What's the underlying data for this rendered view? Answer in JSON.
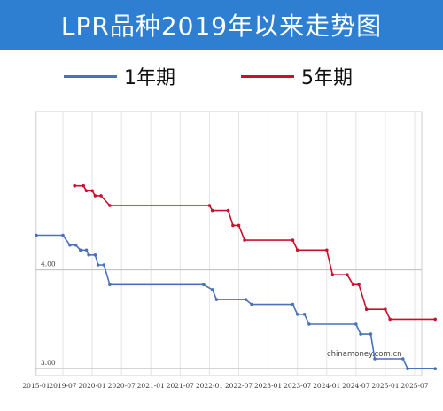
{
  "title": "LPR品种2019年以来走势图",
  "legend": [
    {
      "label": "1年期",
      "color": "#4a72b8"
    },
    {
      "label": "5年期",
      "color": "#c8102e"
    }
  ],
  "watermark": "chinamoney.com.cn",
  "chart_data": {
    "type": "line",
    "title": "LPR品种2019年以来走势图",
    "xlabel": "",
    "ylabel": "",
    "ylim": [
      2.93,
      5.6
    ],
    "y_ticks": [
      {
        "value": 4.0,
        "label": "4.00"
      },
      {
        "value": 3.0,
        "label": "3.00"
      }
    ],
    "x_ticks": [
      {
        "t": 2015.0,
        "label": "2015-01"
      },
      {
        "t": 2019.5,
        "label": "2019-07"
      },
      {
        "t": 2020.0,
        "label": "2020-01"
      },
      {
        "t": 2020.5,
        "label": "2020-07"
      },
      {
        "t": 2021.0,
        "label": "2021-01"
      },
      {
        "t": 2021.5,
        "label": "2021-07"
      },
      {
        "t": 2022.0,
        "label": "2022-01"
      },
      {
        "t": 2022.5,
        "label": "2022-07"
      },
      {
        "t": 2023.0,
        "label": "2023-01"
      },
      {
        "t": 2023.5,
        "label": "2023-07"
      },
      {
        "t": 2024.0,
        "label": "2024-01"
      },
      {
        "t": 2024.5,
        "label": "2024-07"
      },
      {
        "t": 2025.0,
        "label": "2025-01"
      },
      {
        "t": 2025.5,
        "label": "2025-07"
      }
    ],
    "grid": true,
    "series": [
      {
        "name": "1年期",
        "color": "#4a72b8",
        "points": [
          [
            2015.0,
            4.35
          ],
          [
            2019.5,
            4.35
          ],
          [
            2019.62,
            4.25
          ],
          [
            2019.72,
            4.25
          ],
          [
            2019.8,
            4.2
          ],
          [
            2019.9,
            4.2
          ],
          [
            2019.94,
            4.15
          ],
          [
            2020.05,
            4.15
          ],
          [
            2020.1,
            4.05
          ],
          [
            2020.2,
            4.05
          ],
          [
            2020.3,
            3.85
          ],
          [
            2021.9,
            3.85
          ],
          [
            2022.05,
            3.8
          ],
          [
            2022.12,
            3.7
          ],
          [
            2022.62,
            3.7
          ],
          [
            2022.72,
            3.65
          ],
          [
            2023.42,
            3.65
          ],
          [
            2023.5,
            3.55
          ],
          [
            2023.62,
            3.55
          ],
          [
            2023.7,
            3.45
          ],
          [
            2024.5,
            3.45
          ],
          [
            2024.58,
            3.35
          ],
          [
            2024.75,
            3.35
          ],
          [
            2024.82,
            3.1
          ],
          [
            2025.3,
            3.1
          ],
          [
            2025.38,
            3.0
          ],
          [
            2025.85,
            3.0
          ]
        ]
      },
      {
        "name": "5年期",
        "color": "#c8102e",
        "points": [
          [
            2019.7,
            4.85
          ],
          [
            2019.85,
            4.85
          ],
          [
            2019.9,
            4.8
          ],
          [
            2020.0,
            4.8
          ],
          [
            2020.05,
            4.75
          ],
          [
            2020.15,
            4.75
          ],
          [
            2020.3,
            4.65
          ],
          [
            2022.0,
            4.65
          ],
          [
            2022.05,
            4.6
          ],
          [
            2022.32,
            4.6
          ],
          [
            2022.4,
            4.45
          ],
          [
            2022.5,
            4.45
          ],
          [
            2022.6,
            4.3
          ],
          [
            2023.42,
            4.3
          ],
          [
            2023.5,
            4.2
          ],
          [
            2024.0,
            4.2
          ],
          [
            2024.1,
            3.95
          ],
          [
            2024.35,
            3.95
          ],
          [
            2024.45,
            3.85
          ],
          [
            2024.55,
            3.85
          ],
          [
            2024.68,
            3.6
          ],
          [
            2025.0,
            3.6
          ],
          [
            2025.08,
            3.5
          ],
          [
            2025.85,
            3.5
          ]
        ]
      }
    ]
  }
}
